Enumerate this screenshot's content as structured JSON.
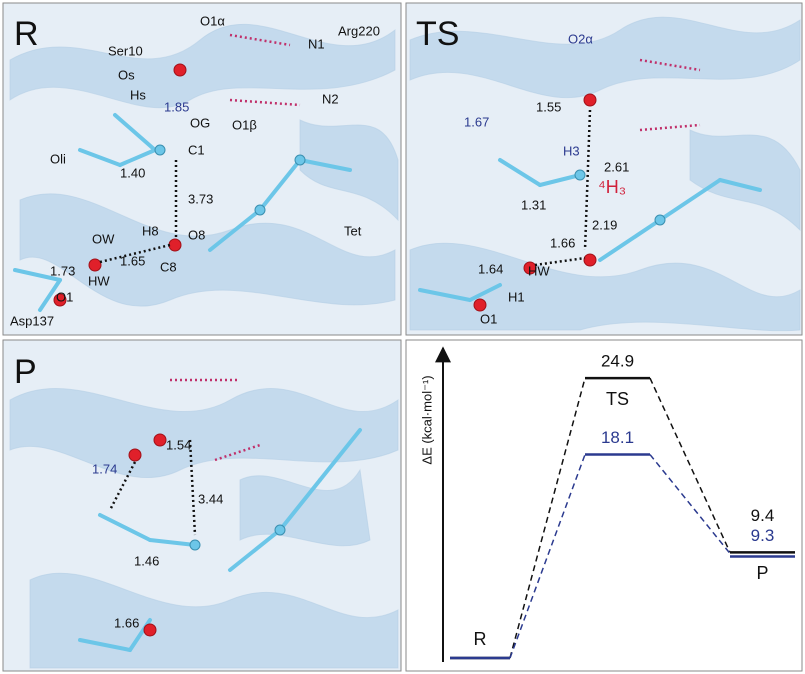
{
  "panels": [
    {
      "label": "R",
      "labels": [
        "O1α",
        "N1",
        "Arg220",
        "Ser10",
        "Os",
        "Hs",
        "N2",
        "O1β",
        "OG",
        "C1",
        "Oli",
        "H8",
        "O8",
        "Tet",
        "OW",
        "C8",
        "HW",
        "O1",
        "Asp137"
      ],
      "distances": [
        "1.85",
        "1.40",
        "3.73",
        "1.65",
        "1.73"
      ]
    },
    {
      "label": "TS",
      "labels": [
        "O2α",
        "H3",
        "⁴H₃",
        "HW",
        "H1",
        "O1"
      ],
      "distances": [
        "1.67",
        "1.55",
        "2.61",
        "1.31",
        "2.19",
        "1.66",
        "1.64"
      ]
    },
    {
      "label": "P",
      "distances": [
        "1.54",
        "1.74",
        "3.44",
        "1.46",
        "1.66"
      ]
    }
  ],
  "energy": {
    "axis_label": "ΔE (kcal·mol⁻¹)",
    "state_labels": [
      "R",
      "TS",
      "P"
    ],
    "series": [
      {
        "color": "#111111",
        "values": [
          0,
          24.9,
          9.4
        ]
      },
      {
        "color": "#2b3a8f",
        "values": [
          0,
          18.1,
          9.3
        ]
      }
    ]
  }
}
